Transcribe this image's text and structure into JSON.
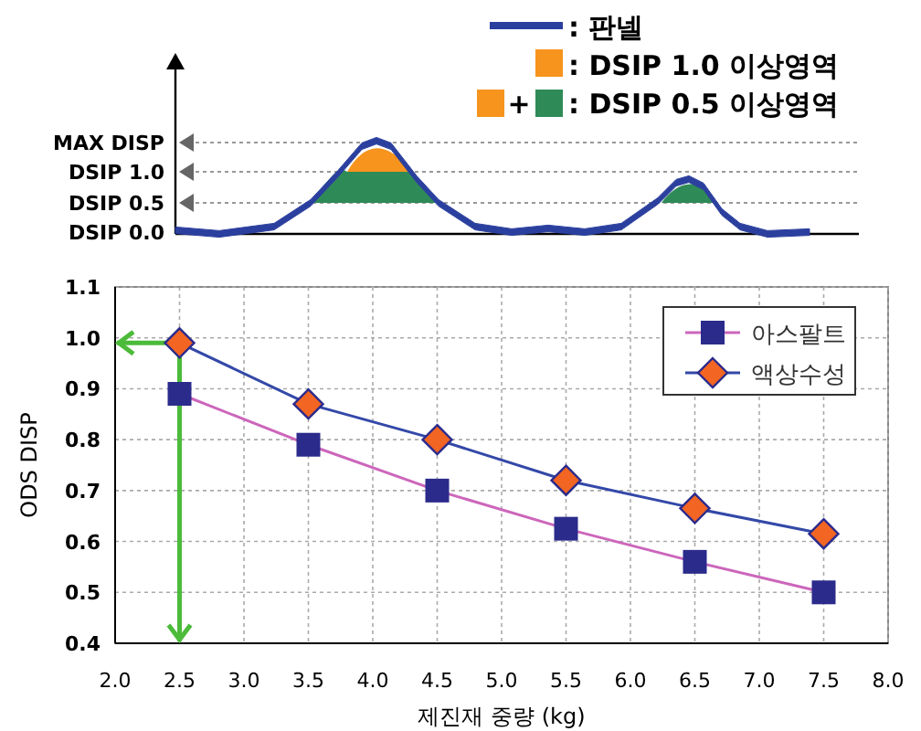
{
  "chart_data": [
    {
      "type": "other",
      "annotations": [
        ": 판넬",
        ": DSIP 1.0 이상영역",
        "+",
        ": DSIP 0.5 이상영역",
        "MAX DISP",
        "DSIP 1.0",
        "DSIP 0.5",
        "DSIP 0.0"
      ]
    },
    {
      "type": "line",
      "xlabel": "제진재 중량 (kg)",
      "ylabel": "ODS DISP",
      "x": [
        2.5,
        3.5,
        4.5,
        5.5,
        6.5,
        7.5
      ],
      "xlim": [
        2,
        8
      ],
      "xticks": [
        {
          "value": 2,
          "label": "2.0"
        },
        2.5,
        {
          "value": 3,
          "label": "3.0"
        },
        3.5,
        {
          "value": 4,
          "label": "4.0"
        },
        4.5,
        {
          "value": 5,
          "label": "5.0"
        },
        5.5,
        {
          "value": 6,
          "label": "6.0"
        },
        6.5,
        {
          "value": 7,
          "label": "7.0"
        },
        7.5,
        {
          "value": 8,
          "label": "8.0"
        }
      ],
      "ref_lines": [
        {
          "axis": "y",
          "value": 0.99,
          "color": "#4cbb3a"
        },
        {
          "axis": "x",
          "value": 2.5,
          "color": "#4cbb3a"
        }
      ],
      "ylim": [
        0.4,
        1.1
      ],
      "yticks": [
        0.4,
        0.5,
        0.6,
        0.7,
        0.8,
        0.9,
        {
          "value": 1,
          "label": "1.0"
        },
        1.1
      ],
      "grid": true,
      "legend": "top right",
      "series": [
        {
          "name": "아스팔트",
          "color": "#cc66bb",
          "marker": "square",
          "colors": [
            "#2b2b8c",
            "#2b2b8c",
            "#2b2b8c",
            "#2b2b8c",
            "#2b2b8c",
            "#2b2b8c"
          ],
          "values": [
            0.89,
            0.79,
            0.7,
            0.625,
            0.56,
            0.5
          ]
        },
        {
          "name": "액상수성",
          "color": "#3348a8",
          "marker": "diamond",
          "colors": [
            "#f26522",
            "#f26522",
            "#f26522",
            "#f26522",
            "#f26522",
            "#f26522"
          ],
          "values": [
            0.99,
            0.87,
            0.8,
            0.72,
            0.665,
            0.615
          ]
        }
      ]
    }
  ]
}
